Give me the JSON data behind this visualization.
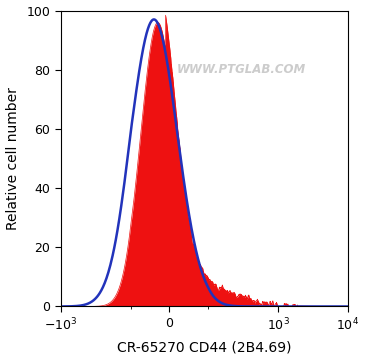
{
  "title": "",
  "xlabel": "CR-65270 CD44 (2B4.69)",
  "ylabel": "Relative cell number",
  "ylim": [
    0,
    100
  ],
  "yticks": [
    0,
    20,
    40,
    60,
    80,
    100
  ],
  "watermark": "WWW.PTGLAB.COM",
  "watermark_color": "#cccccc",
  "background_color": "#ffffff",
  "red_fill_color": "#ee1111",
  "blue_line_color": "#2233bb",
  "linthresh": 100,
  "linscale": 0.5
}
